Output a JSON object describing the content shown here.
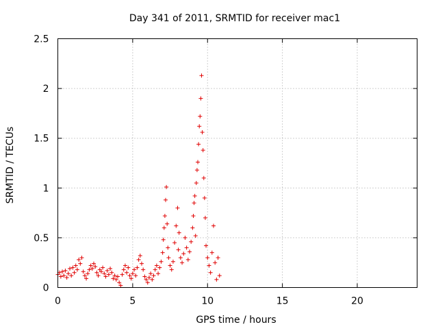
{
  "chart_data": {
    "type": "scatter",
    "title": "Day 341 of 2011, SRMTID for receiver mac1",
    "xlabel": "GPS time / hours",
    "ylabel": "SRMTID / TECUs",
    "xlim": [
      0,
      24
    ],
    "ylim": [
      0,
      2.5
    ],
    "xticks": [
      0,
      5,
      10,
      15,
      20
    ],
    "xtick_labels": [
      "0",
      "5",
      "10",
      "15",
      "20"
    ],
    "yticks": [
      0,
      0.5,
      1,
      1.5,
      2,
      2.5
    ],
    "ytick_labels": [
      "0",
      "0.5",
      "1",
      "1.5",
      "2",
      "2.5"
    ],
    "grid": true,
    "marker": "+",
    "series": [
      {
        "name": "SRMTID mac1",
        "color": "#e00000",
        "points": [
          [
            0.0,
            0.13
          ],
          [
            0.1,
            0.15
          ],
          [
            0.2,
            0.11
          ],
          [
            0.3,
            0.16
          ],
          [
            0.4,
            0.12
          ],
          [
            0.5,
            0.17
          ],
          [
            0.6,
            0.1
          ],
          [
            0.7,
            0.14
          ],
          [
            0.8,
            0.19
          ],
          [
            0.9,
            0.12
          ],
          [
            1.0,
            0.2
          ],
          [
            1.1,
            0.15
          ],
          [
            1.2,
            0.22
          ],
          [
            1.3,
            0.18
          ],
          [
            1.4,
            0.28
          ],
          [
            1.5,
            0.24
          ],
          [
            1.6,
            0.3
          ],
          [
            1.7,
            0.16
          ],
          [
            1.8,
            0.12
          ],
          [
            1.9,
            0.09
          ],
          [
            2.0,
            0.14
          ],
          [
            2.1,
            0.18
          ],
          [
            2.2,
            0.22
          ],
          [
            2.3,
            0.19
          ],
          [
            2.4,
            0.24
          ],
          [
            2.5,
            0.21
          ],
          [
            2.6,
            0.15
          ],
          [
            2.7,
            0.12
          ],
          [
            2.8,
            0.18
          ],
          [
            2.9,
            0.16
          ],
          [
            3.0,
            0.2
          ],
          [
            3.1,
            0.14
          ],
          [
            3.2,
            0.11
          ],
          [
            3.3,
            0.17
          ],
          [
            3.4,
            0.13
          ],
          [
            3.5,
            0.19
          ],
          [
            3.6,
            0.15
          ],
          [
            3.7,
            0.09
          ],
          [
            3.8,
            0.12
          ],
          [
            3.9,
            0.08
          ],
          [
            4.0,
            0.11
          ],
          [
            4.1,
            0.05
          ],
          [
            4.2,
            0.02
          ],
          [
            4.3,
            0.13
          ],
          [
            4.4,
            0.18
          ],
          [
            4.5,
            0.22
          ],
          [
            4.6,
            0.15
          ],
          [
            4.7,
            0.2
          ],
          [
            4.8,
            0.12
          ],
          [
            4.9,
            0.09
          ],
          [
            5.0,
            0.14
          ],
          [
            5.1,
            0.18
          ],
          [
            5.2,
            0.12
          ],
          [
            5.3,
            0.2
          ],
          [
            5.4,
            0.28
          ],
          [
            5.5,
            0.32
          ],
          [
            5.6,
            0.24
          ],
          [
            5.7,
            0.18
          ],
          [
            5.8,
            0.11
          ],
          [
            5.9,
            0.08
          ],
          [
            6.0,
            0.05
          ],
          [
            6.1,
            0.1
          ],
          [
            6.2,
            0.14
          ],
          [
            6.3,
            0.08
          ],
          [
            6.4,
            0.12
          ],
          [
            6.5,
            0.18
          ],
          [
            6.6,
            0.22
          ],
          [
            6.7,
            0.14
          ],
          [
            6.8,
            0.2
          ],
          [
            6.9,
            0.26
          ],
          [
            7.0,
            0.35
          ],
          [
            7.05,
            0.48
          ],
          [
            7.1,
            0.6
          ],
          [
            7.15,
            0.72
          ],
          [
            7.2,
            0.88
          ],
          [
            7.25,
            1.01
          ],
          [
            7.3,
            0.64
          ],
          [
            7.35,
            0.4
          ],
          [
            7.4,
            0.3
          ],
          [
            7.5,
            0.22
          ],
          [
            7.6,
            0.18
          ],
          [
            7.7,
            0.26
          ],
          [
            7.8,
            0.45
          ],
          [
            7.9,
            0.62
          ],
          [
            8.0,
            0.8
          ],
          [
            8.05,
            0.38
          ],
          [
            8.1,
            0.55
          ],
          [
            8.2,
            0.3
          ],
          [
            8.3,
            0.25
          ],
          [
            8.4,
            0.34
          ],
          [
            8.5,
            0.5
          ],
          [
            8.6,
            0.4
          ],
          [
            8.7,
            0.28
          ],
          [
            8.8,
            0.36
          ],
          [
            8.9,
            0.46
          ],
          [
            9.0,
            0.6
          ],
          [
            9.05,
            0.72
          ],
          [
            9.1,
            0.85
          ],
          [
            9.15,
            0.92
          ],
          [
            9.2,
            0.52
          ],
          [
            9.25,
            1.05
          ],
          [
            9.3,
            1.18
          ],
          [
            9.35,
            1.26
          ],
          [
            9.4,
            1.44
          ],
          [
            9.45,
            1.62
          ],
          [
            9.5,
            1.72
          ],
          [
            9.55,
            1.9
          ],
          [
            9.6,
            2.13
          ],
          [
            9.65,
            1.56
          ],
          [
            9.7,
            1.38
          ],
          [
            9.75,
            1.1
          ],
          [
            9.8,
            0.9
          ],
          [
            9.85,
            0.7
          ],
          [
            9.9,
            0.42
          ],
          [
            10.0,
            0.3
          ],
          [
            10.1,
            0.22
          ],
          [
            10.2,
            0.15
          ],
          [
            10.3,
            0.35
          ],
          [
            10.4,
            0.62
          ],
          [
            10.5,
            0.25
          ],
          [
            10.6,
            0.08
          ],
          [
            10.7,
            0.3
          ],
          [
            10.8,
            0.12
          ]
        ]
      }
    ]
  }
}
